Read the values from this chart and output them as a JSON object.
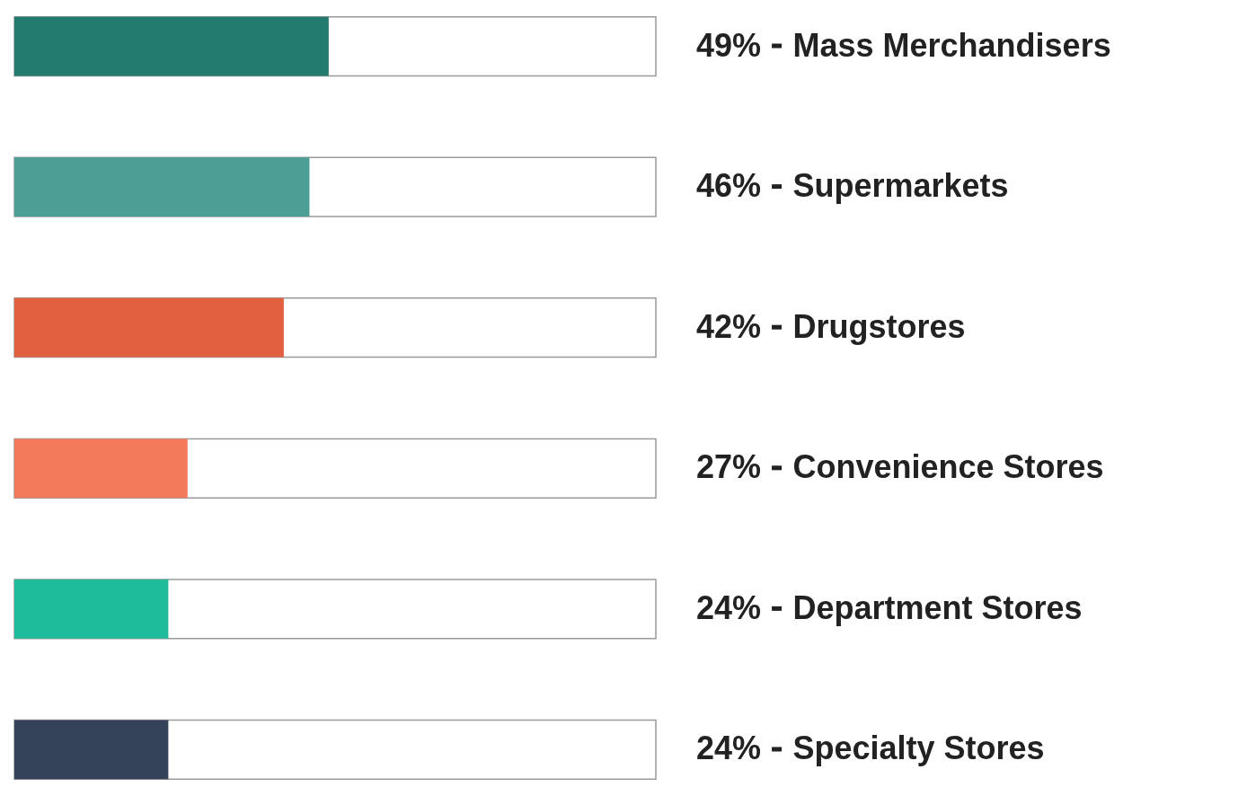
{
  "chart_data": {
    "type": "bar",
    "orientation": "horizontal",
    "categories": [
      "Mass Merchandisers",
      "Supermarkets",
      "Drugstores",
      "Convenience Stores",
      "Department Stores",
      "Specialty Stores"
    ],
    "values": [
      49,
      46,
      42,
      27,
      24,
      24
    ],
    "value_labels": [
      "49%",
      "46%",
      "42%",
      "27%",
      "24%",
      "24%"
    ],
    "colors": [
      "#237a6e",
      "#4a9e94",
      "#e0603f",
      "#f47a5c",
      "#1ebc9b",
      "#34435a"
    ],
    "xlim": [
      0,
      100
    ],
    "tick_labels": "y",
    "legend": false
  }
}
